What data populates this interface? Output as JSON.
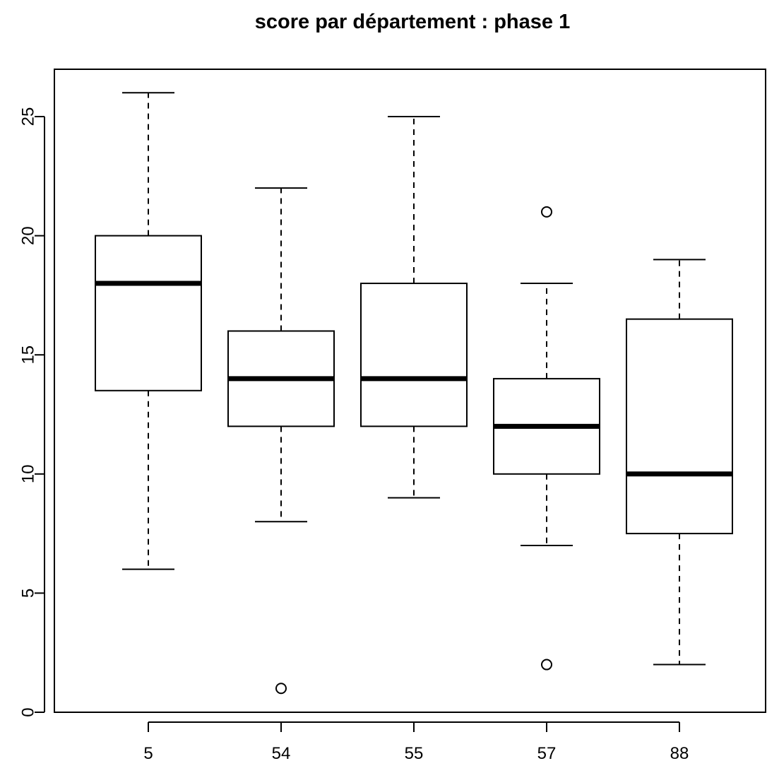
{
  "chart_data": {
    "type": "box",
    "title": "score par département : phase 1",
    "xlabel": "",
    "ylabel": "",
    "categories": [
      "5",
      "54",
      "55",
      "57",
      "88"
    ],
    "ylim": [
      0,
      27
    ],
    "yticks": [
      0,
      5,
      10,
      15,
      20,
      25
    ],
    "boxes": [
      {
        "category": "5",
        "whisker_low": 6,
        "q1": 13.5,
        "median": 18,
        "q3": 20,
        "whisker_high": 26,
        "outliers": []
      },
      {
        "category": "54",
        "whisker_low": 8,
        "q1": 12,
        "median": 14,
        "q3": 16,
        "whisker_high": 22,
        "outliers": [
          1
        ]
      },
      {
        "category": "55",
        "whisker_low": 9,
        "q1": 12,
        "median": 14,
        "q3": 18,
        "whisker_high": 25,
        "outliers": []
      },
      {
        "category": "57",
        "whisker_low": 7,
        "q1": 10,
        "median": 12,
        "q3": 14,
        "whisker_high": 18,
        "outliers": [
          21,
          2
        ]
      },
      {
        "category": "88",
        "whisker_low": 2,
        "q1": 7.5,
        "median": 10,
        "q3": 16.5,
        "whisker_high": 19,
        "outliers": []
      }
    ],
    "grid": false,
    "legend": "none",
    "colors": {
      "box_fill": "#ffffff",
      "stroke": "#000000"
    }
  }
}
